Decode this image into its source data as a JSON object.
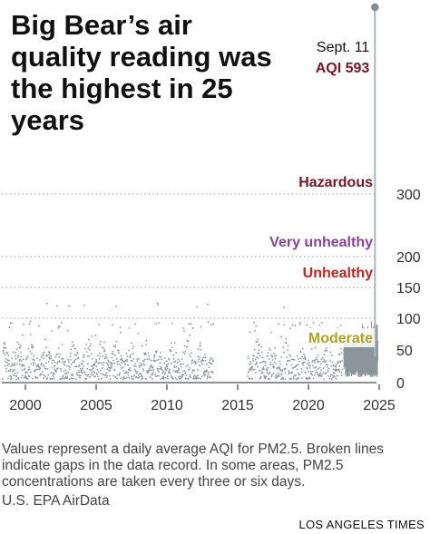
{
  "title": "Big Bear’s air quality reading was the highest in 25 years",
  "footnote": "Values represent a daily average AQI for PM2.5. Broken lines indicate gaps in the data record. In some areas, PM2.5 concentrations are taken every three or six days.",
  "source": "U.S. EPA AirData",
  "credit": "LOS ANGELES TIMES",
  "colors": {
    "points": "#8a969c",
    "line": "#8a969c",
    "peak_line": "#a9b6bc",
    "grid": "#999999",
    "hazardous": "#7a1421",
    "very_unhealthy": "#8b3fa3",
    "unhealthy": "#c8201f",
    "moderate": "#b5a21a",
    "annotation_value": "#7a1421"
  },
  "chart_data": {
    "type": "scatter",
    "title": "Big Bear’s air quality reading was the highest in 25 years",
    "xlabel": "",
    "ylabel": "",
    "xlim": [
      1998.3,
      2025.2
    ],
    "ylim": [
      0,
      593
    ],
    "x_ticks": [
      "2000",
      "2005",
      "2010",
      "2015",
      "2020",
      "2025"
    ],
    "y_ticks": [
      "0",
      "50",
      "100",
      "150",
      "200",
      "300"
    ],
    "y_tick_values": [
      0,
      50,
      100,
      150,
      200,
      300
    ],
    "grid": "horizontal dotted lines at 100, 150, 200, 300",
    "categories": [
      {
        "name": "Hazardous",
        "threshold": 300,
        "color": "#7a1421"
      },
      {
        "name": "Very unhealthy",
        "threshold": 200,
        "color": "#8b3fa3"
      },
      {
        "name": "Unhealthy",
        "threshold": 150,
        "color": "#c8201f"
      },
      {
        "name": "Moderate",
        "threshold": 50,
        "color": "#b5a21a"
      }
    ],
    "peak": {
      "date_label": "Sept. 11",
      "value_label": "AQI 593",
      "x": 2024.7,
      "y": 593
    },
    "scatter_series": {
      "years_covered": [
        1998.4,
        2022.4
      ],
      "gaps": [
        [
          2013.3,
          2015.7
        ]
      ],
      "typical_range": [
        5,
        60
      ],
      "occasional_highs": [
        70,
        125
      ]
    },
    "daily_line_series": {
      "x_range": [
        2022.5,
        2024.9
      ],
      "typical_range": [
        8,
        65
      ],
      "highs_up_to": 95
    }
  }
}
